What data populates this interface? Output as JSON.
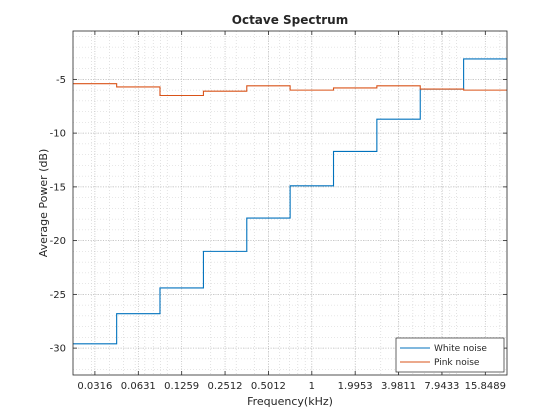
{
  "chart_data": {
    "type": "line",
    "title": "Octave Spectrum",
    "xlabel": "Frequency(kHz)",
    "ylabel": "Average Power (dB)",
    "x_scale": "log",
    "xlim": [
      0.0223,
      22.39
    ],
    "ylim": [
      -32.5,
      -0.5
    ],
    "grid": true,
    "minor_grid": true,
    "legend_position": "bottom-right",
    "x_ticks": [
      {
        "value": 0.0316,
        "label": "0.0316"
      },
      {
        "value": 0.0631,
        "label": "0.0631"
      },
      {
        "value": 0.1259,
        "label": "0.1259"
      },
      {
        "value": 0.2512,
        "label": "0.2512"
      },
      {
        "value": 0.5012,
        "label": "0.5012"
      },
      {
        "value": 1,
        "label": "1"
      },
      {
        "value": 1.9953,
        "label": "1.9953"
      },
      {
        "value": 3.9811,
        "label": "3.9811"
      },
      {
        "value": 7.9433,
        "label": "7.9433"
      },
      {
        "value": 15.8489,
        "label": "15.8489"
      }
    ],
    "y_ticks": [
      {
        "value": -5,
        "label": "-5"
      },
      {
        "value": -10,
        "label": "-10"
      },
      {
        "value": -15,
        "label": "-15"
      },
      {
        "value": -20,
        "label": "-20"
      },
      {
        "value": -25,
        "label": "-25"
      },
      {
        "value": -30,
        "label": "-30"
      }
    ],
    "band_edges": [
      0.0223,
      0.0447,
      0.0891,
      0.178,
      0.355,
      0.708,
      1.413,
      2.818,
      5.623,
      11.22,
      22.39
    ],
    "series": [
      {
        "name": "White noise",
        "color": "#0072BD",
        "values": [
          -29.6,
          -26.8,
          -24.4,
          -21.0,
          -17.9,
          -14.9,
          -11.7,
          -8.7,
          -5.9,
          -3.1
        ]
      },
      {
        "name": "Pink noise",
        "color": "#D95319",
        "values": [
          -5.4,
          -5.7,
          -6.5,
          -6.1,
          -5.6,
          -6.0,
          -5.8,
          -5.6,
          -5.9,
          -6.0
        ]
      }
    ]
  }
}
